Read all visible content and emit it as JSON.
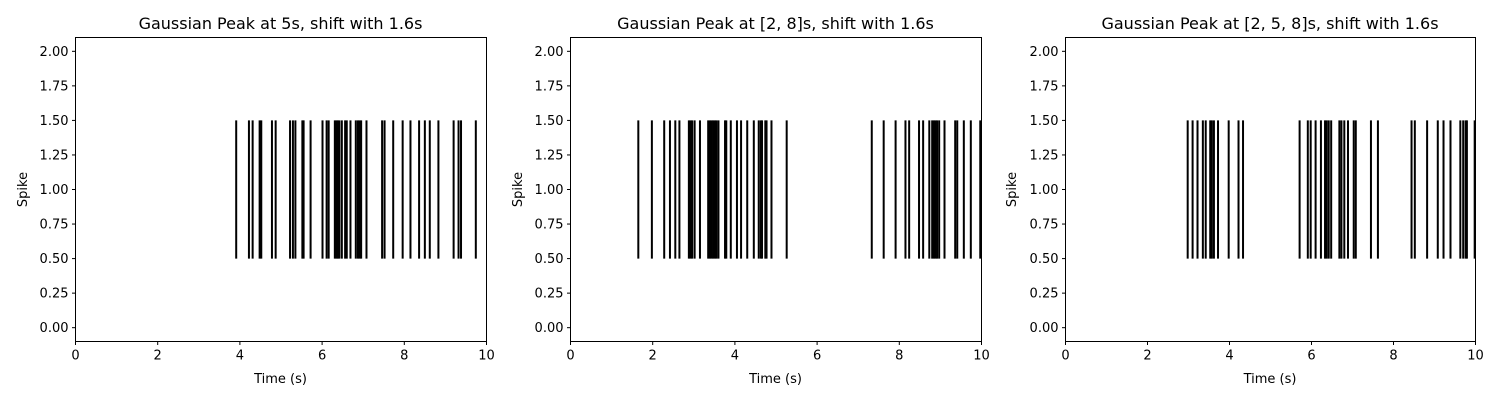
{
  "chart_data": [
    {
      "type": "eventplot",
      "title": "Gaussian Peak at 5s, shift with 1.6s",
      "xlabel": "Time (s)",
      "ylabel": "Spike",
      "xlim": [
        0,
        10
      ],
      "ylim": [
        -0.1,
        2.1
      ],
      "xticks": [
        "0",
        "2",
        "4",
        "6",
        "8",
        "10"
      ],
      "yticks": [
        "0.00",
        "0.25",
        "0.50",
        "0.75",
        "1.00",
        "1.25",
        "1.50",
        "1.75",
        "2.00"
      ],
      "line_range": [
        0.5,
        1.5
      ],
      "color": "#000000",
      "events": [
        3.91,
        4.22,
        4.31,
        4.48,
        4.52,
        4.78,
        4.87,
        5.22,
        5.29,
        5.35,
        5.52,
        5.55,
        5.72,
        6.01,
        6.11,
        6.16,
        6.31,
        6.35,
        6.38,
        6.42,
        6.48,
        6.56,
        6.6,
        6.69,
        6.82,
        6.87,
        6.91,
        6.95,
        7.08,
        7.46,
        7.52,
        7.73,
        7.96,
        8.15,
        8.36,
        8.5,
        8.62,
        8.83,
        9.2,
        9.32,
        9.38,
        9.74
      ]
    },
    {
      "type": "eventplot",
      "title": "Gaussian Peak at [2, 8]s, shift with 1.6s",
      "xlabel": "Time (s)",
      "ylabel": "Spike",
      "xlim": [
        0,
        10
      ],
      "ylim": [
        -0.1,
        2.1
      ],
      "xticks": [
        "0",
        "2",
        "4",
        "6",
        "8",
        "10"
      ],
      "yticks": [
        "0.00",
        "0.25",
        "0.50",
        "0.75",
        "1.00",
        "1.25",
        "1.50",
        "1.75",
        "2.00"
      ],
      "line_range": [
        0.5,
        1.5
      ],
      "color": "#000000",
      "events": [
        1.65,
        1.98,
        2.28,
        2.42,
        2.55,
        2.65,
        2.88,
        2.92,
        2.96,
        3.02,
        3.15,
        3.35,
        3.39,
        3.43,
        3.47,
        3.51,
        3.55,
        3.6,
        3.76,
        3.79,
        3.9,
        4.05,
        4.15,
        4.3,
        4.46,
        4.58,
        4.63,
        4.66,
        4.74,
        4.77,
        4.89,
        5.26,
        7.33,
        7.62,
        7.91,
        8.15,
        8.24,
        8.48,
        8.58,
        8.73,
        8.8,
        8.84,
        8.88,
        8.92,
        8.97,
        9.1,
        9.36,
        9.41,
        9.57,
        9.74,
        9.97
      ]
    },
    {
      "type": "eventplot",
      "title": "Gaussian Peak at [2, 5, 8]s, shift with 1.6s",
      "xlabel": "Time (s)",
      "ylabel": "Spike",
      "xlim": [
        0,
        10
      ],
      "ylim": [
        -0.1,
        2.1
      ],
      "xticks": [
        "0",
        "2",
        "4",
        "6",
        "8",
        "10"
      ],
      "yticks": [
        "0.00",
        "0.25",
        "0.50",
        "0.75",
        "1.00",
        "1.25",
        "1.50",
        "1.75",
        "2.00"
      ],
      "line_range": [
        0.5,
        1.5
      ],
      "color": "#000000",
      "events": [
        2.98,
        3.1,
        3.22,
        3.35,
        3.42,
        3.53,
        3.57,
        3.62,
        3.72,
        3.98,
        4.22,
        4.33,
        5.71,
        5.91,
        5.98,
        6.1,
        6.23,
        6.33,
        6.37,
        6.42,
        6.48,
        6.68,
        6.73,
        6.8,
        6.89,
        7.03,
        7.08,
        7.45,
        7.62,
        8.44,
        8.52,
        8.82,
        9.08,
        9.22,
        9.39,
        9.63,
        9.7,
        9.76,
        9.79,
        9.98
      ]
    }
  ]
}
